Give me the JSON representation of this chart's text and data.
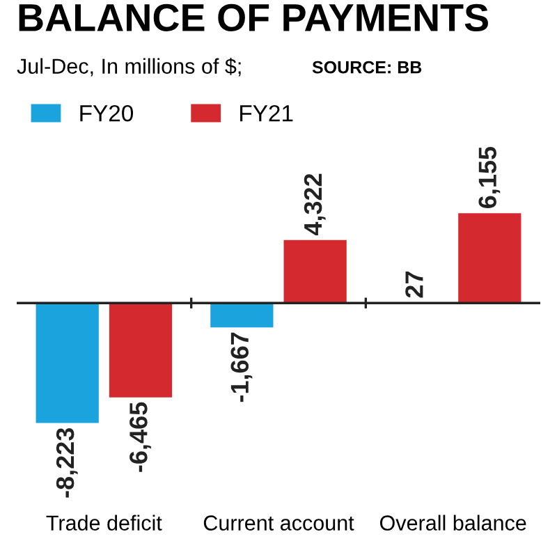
{
  "chart_data": {
    "type": "bar",
    "title": "BALANCE OF PAYMENTS",
    "subtitle": "Jul-Dec, In millions of $;",
    "annotations": [
      "SOURCE: BB"
    ],
    "categories": [
      "Trade deficit",
      "Current account",
      "Overall balance"
    ],
    "series": [
      {
        "name": "FY20",
        "color": "#1ba3dd",
        "values": [
          -8223,
          -1667,
          27
        ],
        "value_labels": [
          "-8,223",
          "-1,667",
          "27"
        ]
      },
      {
        "name": "FY21",
        "color": "#d42a2f",
        "values": [
          -6465,
          4322,
          6155
        ],
        "value_labels": [
          "-6,465",
          "4,322",
          "6,155"
        ]
      }
    ],
    "legend": "top left"
  }
}
